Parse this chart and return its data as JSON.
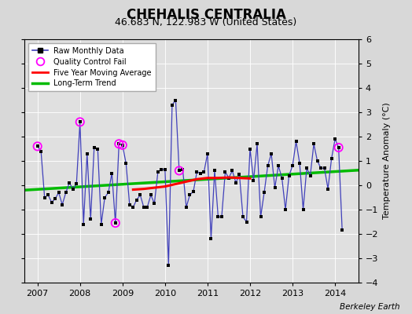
{
  "title": "CHEHALIS CENTRALIA",
  "subtitle": "46.683 N, 122.983 W (United States)",
  "ylabel": "Temperature Anomaly (°C)",
  "attribution": "Berkeley Earth",
  "ylim": [
    -4,
    6
  ],
  "yticks": [
    -4,
    -3,
    -2,
    -1,
    0,
    1,
    2,
    3,
    4,
    5,
    6
  ],
  "xlim_start": 2006.7,
  "xlim_end": 2014.55,
  "xticks": [
    2007,
    2008,
    2009,
    2010,
    2011,
    2012,
    2013,
    2014
  ],
  "bg_color": "#d8d8d8",
  "plot_bg_color": "#e0e0e0",
  "raw_color": "#4040bb",
  "raw_marker_color": "#000000",
  "qc_color": "#ff00ff",
  "mavg_color": "#ff0000",
  "trend_color": "#00bb00",
  "title_fontsize": 12,
  "subtitle_fontsize": 9,
  "axis_fontsize": 8,
  "ylabel_fontsize": 8,
  "raw_monthly": [
    [
      2007.0,
      1.6
    ],
    [
      2007.083,
      1.4
    ],
    [
      2007.167,
      -0.5
    ],
    [
      2007.25,
      -0.4
    ],
    [
      2007.333,
      -0.7
    ],
    [
      2007.417,
      -0.55
    ],
    [
      2007.5,
      -0.3
    ],
    [
      2007.583,
      -0.8
    ],
    [
      2007.667,
      -0.3
    ],
    [
      2007.75,
      0.1
    ],
    [
      2007.833,
      -0.15
    ],
    [
      2007.917,
      0.05
    ],
    [
      2008.0,
      2.6
    ],
    [
      2008.083,
      -1.6
    ],
    [
      2008.167,
      1.3
    ],
    [
      2008.25,
      -1.4
    ],
    [
      2008.333,
      1.55
    ],
    [
      2008.417,
      1.5
    ],
    [
      2008.5,
      -1.6
    ],
    [
      2008.583,
      -0.5
    ],
    [
      2008.667,
      -0.3
    ],
    [
      2008.75,
      0.5
    ],
    [
      2008.833,
      -1.55
    ],
    [
      2008.917,
      1.7
    ],
    [
      2009.0,
      1.65
    ],
    [
      2009.083,
      0.9
    ],
    [
      2009.167,
      -0.8
    ],
    [
      2009.25,
      -0.9
    ],
    [
      2009.333,
      -0.6
    ],
    [
      2009.417,
      -0.4
    ],
    [
      2009.5,
      -0.9
    ],
    [
      2009.583,
      -0.9
    ],
    [
      2009.667,
      -0.4
    ],
    [
      2009.75,
      -0.75
    ],
    [
      2009.833,
      0.55
    ],
    [
      2009.917,
      0.65
    ],
    [
      2010.0,
      0.65
    ],
    [
      2010.083,
      -3.3
    ],
    [
      2010.167,
      3.3
    ],
    [
      2010.25,
      3.5
    ],
    [
      2010.333,
      0.6
    ],
    [
      2010.417,
      0.65
    ],
    [
      2010.5,
      -0.9
    ],
    [
      2010.583,
      -0.4
    ],
    [
      2010.667,
      -0.25
    ],
    [
      2010.75,
      0.55
    ],
    [
      2010.833,
      0.5
    ],
    [
      2010.917,
      0.55
    ],
    [
      2011.0,
      1.3
    ],
    [
      2011.083,
      -2.2
    ],
    [
      2011.167,
      0.6
    ],
    [
      2011.25,
      -1.3
    ],
    [
      2011.333,
      -1.3
    ],
    [
      2011.417,
      0.55
    ],
    [
      2011.5,
      0.3
    ],
    [
      2011.583,
      0.6
    ],
    [
      2011.667,
      0.1
    ],
    [
      2011.75,
      0.45
    ],
    [
      2011.833,
      -1.3
    ],
    [
      2011.917,
      -1.5
    ],
    [
      2012.0,
      1.5
    ],
    [
      2012.083,
      0.2
    ],
    [
      2012.167,
      1.7
    ],
    [
      2012.25,
      -1.3
    ],
    [
      2012.333,
      -0.3
    ],
    [
      2012.417,
      0.8
    ],
    [
      2012.5,
      1.3
    ],
    [
      2012.583,
      -0.1
    ],
    [
      2012.667,
      0.8
    ],
    [
      2012.75,
      0.3
    ],
    [
      2012.833,
      -1.0
    ],
    [
      2012.917,
      0.4
    ],
    [
      2013.0,
      0.8
    ],
    [
      2013.083,
      1.8
    ],
    [
      2013.167,
      0.9
    ],
    [
      2013.25,
      -1.0
    ],
    [
      2013.333,
      0.7
    ],
    [
      2013.417,
      0.4
    ],
    [
      2013.5,
      1.7
    ],
    [
      2013.583,
      1.0
    ],
    [
      2013.667,
      0.7
    ],
    [
      2013.75,
      0.7
    ],
    [
      2013.833,
      -0.15
    ],
    [
      2013.917,
      1.1
    ],
    [
      2014.0,
      1.9
    ],
    [
      2014.083,
      1.55
    ],
    [
      2014.167,
      -1.85
    ]
  ],
  "qc_fail_points": [
    [
      2007.0,
      1.6
    ],
    [
      2008.0,
      2.6
    ],
    [
      2008.833,
      -1.55
    ],
    [
      2008.917,
      1.7
    ],
    [
      2009.0,
      1.65
    ],
    [
      2010.333,
      0.6
    ],
    [
      2014.083,
      1.55
    ]
  ],
  "mavg_x": [
    2009.25,
    2009.5,
    2009.75,
    2010.0,
    2010.25,
    2010.5,
    2010.75,
    2011.0,
    2011.25,
    2011.5,
    2011.75,
    2012.0
  ],
  "mavg_y": [
    -0.18,
    -0.15,
    -0.1,
    -0.05,
    0.05,
    0.15,
    0.25,
    0.3,
    0.3,
    0.32,
    0.3,
    0.28
  ],
  "trend_x": [
    2006.7,
    2014.55
  ],
  "trend_y": [
    -0.2,
    0.62
  ]
}
